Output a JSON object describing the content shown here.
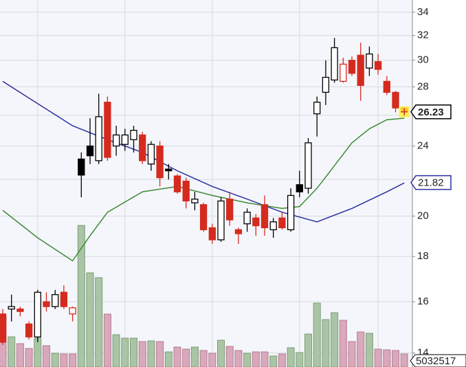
{
  "chart_data": {
    "type": "candlestick",
    "log_scale": true,
    "ylim": [
      13.5,
      35.1
    ],
    "yticks": [
      14,
      16,
      18,
      20,
      22,
      24,
      26,
      28,
      30,
      32,
      34
    ],
    "grid": true,
    "xgrid": [
      4,
      14,
      24,
      34,
      43
    ],
    "candles": {
      "open": [
        15.5,
        15.7,
        15.7,
        15.1,
        14.6,
        16.0,
        15.8,
        16.4,
        15.5,
        23.2,
        24.0,
        23.1,
        26.9,
        24.0,
        24.1,
        24.4,
        24.7,
        22.9,
        24.0,
        22.6,
        22.2,
        21.9,
        20.7,
        20.6,
        19.4,
        18.8,
        20.9,
        19.3,
        19.6,
        19.9,
        20.6,
        19.3,
        19.9,
        19.3,
        21.7,
        21.5,
        26.1,
        27.6,
        28.5,
        28.4,
        30.0,
        30.4,
        29.4,
        29.9,
        28.4,
        27.6,
        26.5
      ],
      "high": [
        15.7,
        16.3,
        15.8,
        15.2,
        16.5,
        16.4,
        16.5,
        16.7,
        15.8,
        23.6,
        25.8,
        27.5,
        27.3,
        25.3,
        25.1,
        25.3,
        24.9,
        24.3,
        24.3,
        22.9,
        22.3,
        22.1,
        21.3,
        20.7,
        19.6,
        21.0,
        21.3,
        19.4,
        20.4,
        20.1,
        21.1,
        19.9,
        20.2,
        21.5,
        22.5,
        24.5,
        27.3,
        30.0,
        31.8,
        30.2,
        30.3,
        31.4,
        31.1,
        30.5,
        28.8,
        27.7,
        26.6
      ],
      "low": [
        14.3,
        15.2,
        15.4,
        14.5,
        14.4,
        15.6,
        15.7,
        15.7,
        15.2,
        21.0,
        22.9,
        22.9,
        23.1,
        23.4,
        23.7,
        23.6,
        22.9,
        22.5,
        21.6,
        22.0,
        21.2,
        20.4,
        20.3,
        19.2,
        18.6,
        18.7,
        19.5,
        18.6,
        19.2,
        19.0,
        19.0,
        18.9,
        19.3,
        19.2,
        21.0,
        21.2,
        24.6,
        26.7,
        28.3,
        28.3,
        28.8,
        27.0,
        28.8,
        28.9,
        27.4,
        26.2,
        25.9
      ],
      "close": [
        14.4,
        15.8,
        15.6,
        14.6,
        16.4,
        15.8,
        16.3,
        15.8,
        15.75,
        22.25,
        23.4,
        25.9,
        23.3,
        24.7,
        24.7,
        25.0,
        23.1,
        24.1,
        22.1,
        22.5,
        21.3,
        20.8,
        20.9,
        19.3,
        18.8,
        20.8,
        19.8,
        19.1,
        20.2,
        19.5,
        19.4,
        19.7,
        19.4,
        21.1,
        21.3,
        24.2,
        26.9,
        28.7,
        31.0,
        29.7,
        29.0,
        28.1,
        30.5,
        29.3,
        27.6,
        26.5,
        26.23
      ],
      "color": [
        "#d52b1e",
        "#000000",
        "#d52b1e",
        "#d52b1e",
        "#000000",
        "#d52b1e",
        "#000000",
        "#d52b1e",
        "#d52b1e",
        "#000000",
        "#000000",
        "#000000",
        "#d52b1e",
        "#000000",
        "#000000",
        "#000000",
        "#d52b1e",
        "#000000",
        "#d52b1e",
        "#000000",
        "#d52b1e",
        "#d52b1e",
        "#000000",
        "#d52b1e",
        "#d52b1e",
        "#000000",
        "#d52b1e",
        "#d52b1e",
        "#000000",
        "#d52b1e",
        "#d52b1e",
        "#000000",
        "#d52b1e",
        "#000000",
        "#000000",
        "#000000",
        "#000000",
        "#000000",
        "#000000",
        "#d52b1e",
        "#d52b1e",
        "#d52b1e",
        "#000000",
        "#d52b1e",
        "#d52b1e",
        "#d52b1e",
        "#d52b1e"
      ]
    },
    "volume": {
      "ylim": [
        0,
        141440000
      ],
      "color_up": "#a9c5a5",
      "color_down": "#d9a9bb",
      "values": [
        19600000,
        11650000,
        9000000,
        7150000,
        11120000,
        8210000,
        5300000,
        5030000,
        5030000,
        54560000,
        36290000,
        34430000,
        20400000,
        12450000,
        11120000,
        11120000,
        9800000,
        10060000,
        9800000,
        5830000,
        7680000,
        6890000,
        7680000,
        6360000,
        5300000,
        10330000,
        7950000,
        6360000,
        5300000,
        5830000,
        5830000,
        4240000,
        5030000,
        7420000,
        5560000,
        12710000,
        24630000,
        18280000,
        20920000,
        18010000,
        9800000,
        13510000,
        12980000,
        6890000,
        6620000,
        6360000,
        5032517
      ]
    },
    "series": [
      {
        "color": "#2b2f9e",
        "x": [
          0,
          4,
          8,
          12,
          16,
          20,
          24,
          28,
          32,
          36,
          40,
          44,
          46
        ],
        "values": [
          28.4,
          26.8,
          25.3,
          24.4,
          23.6,
          22.5,
          21.6,
          20.9,
          20.2,
          19.7,
          20.4,
          21.3,
          21.8
        ]
      },
      {
        "color": "#3f8a35",
        "x": [
          0,
          4,
          8,
          10,
          12,
          16,
          20,
          24,
          28,
          32,
          34,
          36,
          38,
          40,
          42,
          44,
          46
        ],
        "values": [
          20.3,
          18.9,
          17.8,
          19.0,
          20.2,
          21.3,
          21.6,
          21.1,
          20.7,
          20.4,
          20.5,
          21.5,
          22.8,
          24.2,
          25.1,
          25.7,
          25.8
        ]
      }
    ],
    "price_labels": [
      {
        "value": 26.23,
        "color": "#000000"
      },
      {
        "value": 21.82,
        "color": "#2b2f9e"
      }
    ],
    "volume_label": 5032517
  }
}
